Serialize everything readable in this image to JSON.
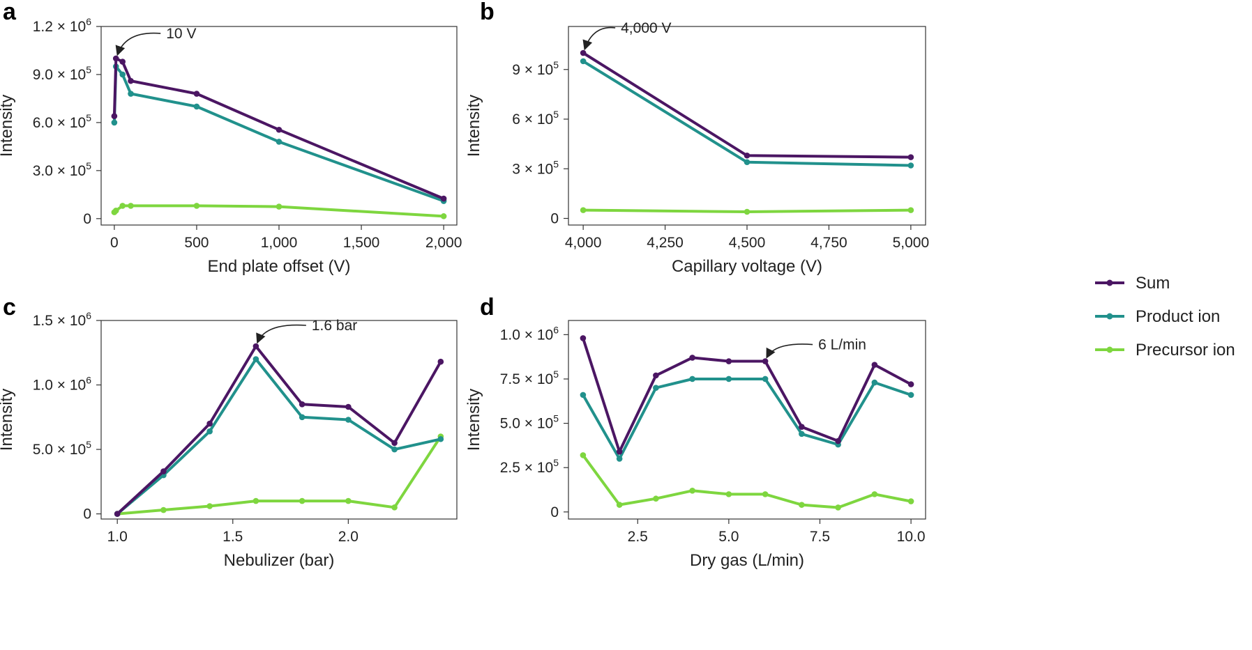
{
  "colors": {
    "Sum": "#4b1663",
    "Product ion": "#21918c",
    "Precursor ion": "#7ed63f"
  },
  "legend": [
    "Sum",
    "Product ion",
    "Precursor ion"
  ],
  "chart_data": [
    {
      "panel": "a",
      "type": "line",
      "xlabel": "End plate offset (V)",
      "ylabel": "Intensity",
      "xlim": [
        -80,
        2080
      ],
      "ylim": [
        -40000,
        1200000
      ],
      "xticks": [
        0,
        500,
        1000,
        1500,
        2000
      ],
      "xtick_labels": [
        "0",
        "500",
        "1,000",
        "1,500",
        "2,000"
      ],
      "yticks": [
        0,
        300000,
        600000,
        900000,
        1200000
      ],
      "ytick_labels": [
        {
          "m": "0",
          "e": ""
        },
        {
          "m": "3.0 × 10",
          "e": "5"
        },
        {
          "m": "6.0 × 10",
          "e": "5"
        },
        {
          "m": "9.0 × 10",
          "e": "5"
        },
        {
          "m": "1.2 × 10",
          "e": "6"
        }
      ],
      "series": [
        {
          "name": "Sum",
          "x": [
            0,
            10,
            50,
            100,
            500,
            1000,
            2000
          ],
          "y": [
            640000,
            1000000,
            980000,
            860000,
            780000,
            555000,
            125000
          ]
        },
        {
          "name": "Product ion",
          "x": [
            0,
            10,
            50,
            100,
            500,
            1000,
            2000
          ],
          "y": [
            600000,
            950000,
            900000,
            780000,
            700000,
            480000,
            110000
          ]
        },
        {
          "name": "Precursor ion",
          "x": [
            0,
            10,
            50,
            100,
            500,
            1000,
            2000
          ],
          "y": [
            40000,
            50000,
            80000,
            80000,
            80000,
            75000,
            15000
          ]
        }
      ],
      "annotation": {
        "text": "10 V",
        "x": 10,
        "y": 1000000
      }
    },
    {
      "panel": "b",
      "type": "line",
      "xlabel": "Capillary voltage (V)",
      "ylabel": "Intensity",
      "xlim": [
        3955,
        5045
      ],
      "ylim": [
        -40000,
        1160000
      ],
      "xticks": [
        4000,
        4250,
        4500,
        4750,
        5000
      ],
      "xtick_labels": [
        "4,000",
        "4,250",
        "4,500",
        "4,750",
        "5,000"
      ],
      "yticks": [
        0,
        300000,
        600000,
        900000
      ],
      "ytick_labels": [
        {
          "m": "0",
          "e": ""
        },
        {
          "m": "3 × 10",
          "e": "5"
        },
        {
          "m": "6 × 10",
          "e": "5"
        },
        {
          "m": "9 × 10",
          "e": "5"
        }
      ],
      "series": [
        {
          "name": "Sum",
          "x": [
            4000,
            4500,
            5000
          ],
          "y": [
            1000000,
            380000,
            370000
          ]
        },
        {
          "name": "Product ion",
          "x": [
            4000,
            4500,
            5000
          ],
          "y": [
            950000,
            340000,
            320000
          ]
        },
        {
          "name": "Precursor ion",
          "x": [
            4000,
            4500,
            5000
          ],
          "y": [
            50000,
            40000,
            50000
          ]
        }
      ],
      "annotation": {
        "text": "4,000 V",
        "x": 4000,
        "y": 1000000
      }
    },
    {
      "panel": "c",
      "type": "line",
      "xlabel": "Nebulizer (bar)",
      "ylabel": "Intensity",
      "xlim": [
        0.93,
        2.47
      ],
      "ylim": [
        -40000,
        1500000
      ],
      "xticks": [
        1.0,
        1.5,
        2.0
      ],
      "xtick_labels": [
        "1.0",
        "1.5",
        "2.0"
      ],
      "yticks": [
        0,
        500000,
        1000000,
        1500000
      ],
      "ytick_labels": [
        {
          "m": "0",
          "e": ""
        },
        {
          "m": "5.0 × 10",
          "e": "5"
        },
        {
          "m": "1.0 × 10",
          "e": "6"
        },
        {
          "m": "1.5 × 10",
          "e": "6"
        }
      ],
      "series": [
        {
          "name": "Sum",
          "x": [
            1.0,
            1.2,
            1.4,
            1.6,
            1.8,
            2.0,
            2.2,
            2.4
          ],
          "y": [
            0,
            330000,
            700000,
            1300000,
            850000,
            830000,
            550000,
            1180000
          ]
        },
        {
          "name": "Product ion",
          "x": [
            1.0,
            1.2,
            1.4,
            1.6,
            1.8,
            2.0,
            2.2,
            2.4
          ],
          "y": [
            0,
            300000,
            640000,
            1200000,
            750000,
            730000,
            500000,
            580000
          ]
        },
        {
          "name": "Precursor ion",
          "x": [
            1.0,
            1.2,
            1.4,
            1.6,
            1.8,
            2.0,
            2.2,
            2.4
          ],
          "y": [
            0,
            30000,
            60000,
            100000,
            100000,
            100000,
            50000,
            600000
          ]
        }
      ],
      "annotation": {
        "text": "1.6 bar",
        "x": 1.6,
        "y": 1300000
      }
    },
    {
      "panel": "d",
      "type": "line",
      "xlabel": "Dry gas (L/min)",
      "ylabel": "Intensity",
      "xlim": [
        0.6,
        10.4
      ],
      "ylim": [
        -40000,
        1080000
      ],
      "xticks": [
        2.5,
        5.0,
        7.5,
        10.0
      ],
      "xtick_labels": [
        "2.5",
        "5.0",
        "7.5",
        "10.0"
      ],
      "yticks": [
        0,
        250000,
        500000,
        750000,
        1000000
      ],
      "ytick_labels": [
        {
          "m": "0",
          "e": ""
        },
        {
          "m": "2.5 × 10",
          "e": "5"
        },
        {
          "m": "5.0 × 10",
          "e": "5"
        },
        {
          "m": "7.5 × 10",
          "e": "5"
        },
        {
          "m": "1.0 × 10",
          "e": "6"
        }
      ],
      "series": [
        {
          "name": "Sum",
          "x": [
            1,
            2,
            3,
            4,
            5,
            6,
            7,
            8,
            9,
            10
          ],
          "y": [
            980000,
            340000,
            770000,
            870000,
            850000,
            850000,
            480000,
            400000,
            830000,
            720000
          ]
        },
        {
          "name": "Product ion",
          "x": [
            1,
            2,
            3,
            4,
            5,
            6,
            7,
            8,
            9,
            10
          ],
          "y": [
            660000,
            300000,
            700000,
            750000,
            750000,
            750000,
            440000,
            380000,
            730000,
            660000
          ]
        },
        {
          "name": "Precursor ion",
          "x": [
            1,
            2,
            3,
            4,
            5,
            6,
            7,
            8,
            9,
            10
          ],
          "y": [
            320000,
            40000,
            75000,
            120000,
            100000,
            100000,
            40000,
            25000,
            100000,
            60000
          ]
        }
      ],
      "annotation": {
        "text": "6 L/min",
        "x": 6,
        "y": 850000
      }
    }
  ]
}
